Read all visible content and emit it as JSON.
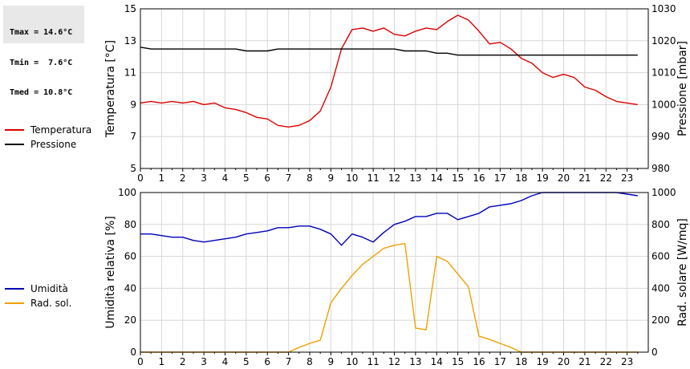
{
  "stats": {
    "tmax": "Tmax = 14.6°C",
    "tmin": "Tmin =  7.6°C",
    "tmed": "Tmed = 10.8°C"
  },
  "chart_data": [
    {
      "type": "line",
      "x_ticks": [
        "0",
        "1",
        "2",
        "3",
        "4",
        "5",
        "6",
        "7",
        "8",
        "9",
        "10",
        "11",
        "12",
        "13",
        "14",
        "15",
        "16",
        "17",
        "18",
        "19",
        "20",
        "21",
        "22",
        "23"
      ],
      "xlim": [
        0,
        24
      ],
      "ylabel": "Temperatura [°C]",
      "ylim": [
        5,
        15
      ],
      "y_ticks": [
        "5",
        "7",
        "9",
        "11",
        "13",
        "15"
      ],
      "y2label": "Pressione [mbar]",
      "y2lim": [
        980,
        1030
      ],
      "y2_ticks": [
        "980",
        "990",
        "1000",
        "1010",
        "1020",
        "1030"
      ],
      "grid": true,
      "legend_position": "left",
      "series": [
        {
          "name": "Temperatura",
          "axis": "left",
          "color": "#dd0000",
          "x": [
            0,
            0.5,
            1,
            1.5,
            2,
            2.5,
            3,
            3.5,
            4,
            4.5,
            5,
            5.5,
            6,
            6.5,
            7,
            7.5,
            8,
            8.5,
            9,
            9.5,
            10,
            10.5,
            11,
            11.5,
            12,
            12.5,
            13,
            13.5,
            14,
            14.5,
            15,
            15.5,
            16,
            16.5,
            17,
            17.5,
            18,
            18.5,
            19,
            19.5,
            20,
            20.5,
            21,
            21.5,
            22,
            22.5,
            23,
            23.5
          ],
          "values": [
            9.1,
            9.2,
            9.1,
            9.2,
            9.1,
            9.2,
            9.0,
            9.1,
            8.8,
            8.7,
            8.5,
            8.2,
            8.1,
            7.7,
            7.6,
            7.7,
            8.0,
            8.6,
            10.1,
            12.5,
            13.7,
            13.8,
            13.6,
            13.8,
            13.4,
            13.3,
            13.6,
            13.8,
            13.7,
            14.2,
            14.6,
            14.3,
            13.6,
            12.8,
            12.9,
            12.5,
            11.9,
            11.6,
            11.0,
            10.7,
            10.9,
            10.7,
            10.1,
            9.9,
            9.5,
            9.2,
            9.1,
            9.0
          ]
        },
        {
          "name": "Pressione",
          "axis": "right",
          "color": "#000000",
          "x": [
            0,
            0.5,
            1,
            4.5,
            5,
            6,
            6.5,
            12,
            12.5,
            13.5,
            14,
            14.5,
            15,
            23.5
          ],
          "values": [
            1018,
            1017.4,
            1017.4,
            1017.4,
            1016.8,
            1016.8,
            1017.4,
            1017.4,
            1016.8,
            1016.8,
            1016.1,
            1016.1,
            1015.5,
            1015.5
          ]
        }
      ]
    },
    {
      "type": "line",
      "x_ticks": [
        "0",
        "1",
        "2",
        "3",
        "4",
        "5",
        "6",
        "7",
        "8",
        "9",
        "10",
        "11",
        "12",
        "13",
        "14",
        "15",
        "16",
        "17",
        "18",
        "19",
        "20",
        "21",
        "22",
        "23"
      ],
      "xlim": [
        0,
        24
      ],
      "ylabel": "Umidità relativa [%]",
      "ylim": [
        0,
        100
      ],
      "y_ticks": [
        "0",
        "20",
        "40",
        "60",
        "80",
        "100"
      ],
      "y2label": "Rad. solare [W/mq]",
      "y2lim": [
        0,
        1000
      ],
      "y2_ticks": [
        "0",
        "200",
        "400",
        "600",
        "800",
        "1000"
      ],
      "grid": true,
      "legend_position": "left",
      "series": [
        {
          "name": "Umidità",
          "axis": "left",
          "color": "#0000bb",
          "x": [
            0,
            0.5,
            1,
            1.5,
            2,
            2.5,
            3,
            3.5,
            4,
            4.5,
            5,
            5.5,
            6,
            6.5,
            7,
            7.5,
            8,
            8.5,
            9,
            9.5,
            10,
            10.5,
            11,
            11.5,
            12,
            12.5,
            13,
            13.5,
            14,
            14.5,
            15,
            15.5,
            16,
            16.5,
            17,
            17.5,
            18,
            18.5,
            19,
            19.5,
            20,
            20.5,
            21,
            21.5,
            22,
            22.5,
            23,
            23.5
          ],
          "values": [
            74,
            74,
            73,
            72,
            72,
            70,
            69,
            70,
            71,
            72,
            74,
            75,
            76,
            78,
            78,
            79,
            79,
            77,
            74,
            67,
            74,
            72,
            69,
            75,
            80,
            82,
            85,
            85,
            87,
            87,
            83,
            85,
            87,
            91,
            92,
            93,
            95,
            98,
            100,
            100,
            100,
            100,
            100,
            100,
            100,
            100,
            99,
            98
          ]
        },
        {
          "name": "Rad. sol.",
          "axis": "right",
          "color": "#f0a000",
          "x": [
            0,
            7,
            7.5,
            8,
            8.5,
            9,
            9.5,
            10,
            10.5,
            11,
            11.5,
            12,
            12.5,
            13,
            13.5,
            14,
            14.5,
            15,
            15.5,
            16,
            16.5,
            17,
            17.5,
            18,
            23.5
          ],
          "values": [
            0,
            0,
            30,
            55,
            75,
            310,
            400,
            480,
            550,
            600,
            650,
            670,
            680,
            150,
            140,
            600,
            570,
            490,
            410,
            100,
            80,
            55,
            30,
            0,
            0
          ]
        }
      ]
    }
  ]
}
